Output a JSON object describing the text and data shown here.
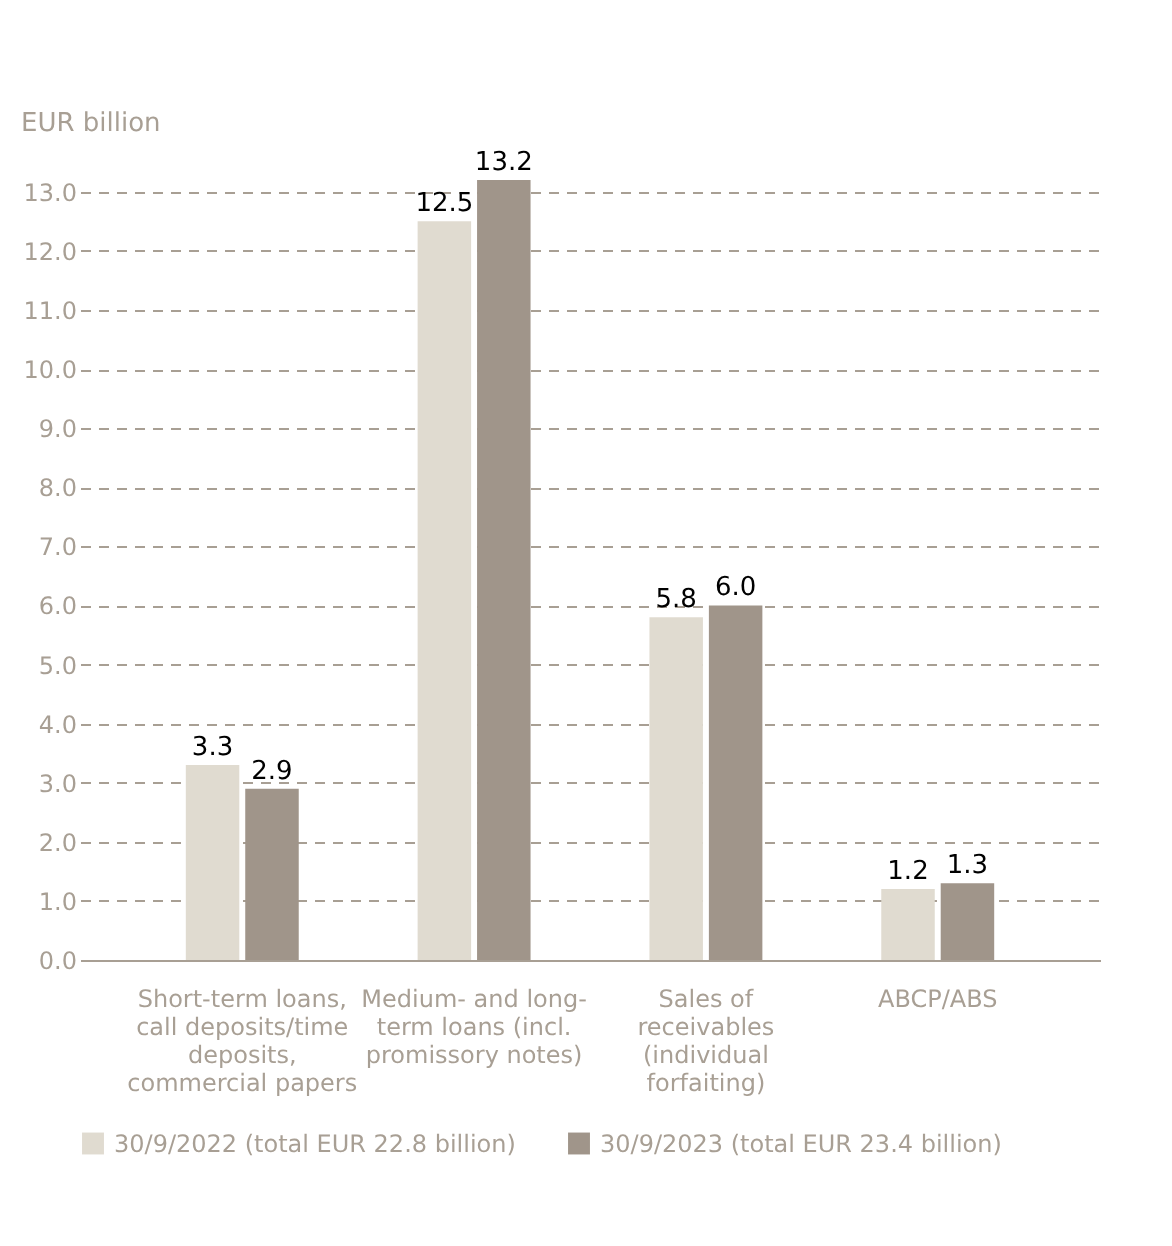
{
  "chart_data": {
    "type": "bar",
    "ylabel": "EUR billion",
    "categories": [
      "Short-term loans, call deposits/time deposits, commercial papers",
      "Medium- and long-term loans (incl. promissory notes)",
      "Sales of receivables (individual forfaiting)",
      "ABCP/ABS"
    ],
    "series": [
      {
        "name": "30/9/2022 (total EUR 22.8 billion)",
        "color": "#e0dbd0",
        "values": [
          3.3,
          12.5,
          5.8,
          1.2
        ],
        "value_labels": [
          "3.3",
          "12.5",
          "5.8",
          "1.2"
        ]
      },
      {
        "name": "30/9/2023 (total EUR 23.4 billion)",
        "color": "#a0958a",
        "values": [
          2.9,
          13.2,
          6.0,
          1.3
        ],
        "value_labels": [
          "2.9",
          "13.2",
          "6.0",
          "1.3"
        ]
      }
    ],
    "ylim": [
      0,
      13.2
    ],
    "yticks": [
      {
        "value": 0,
        "label": "0.0"
      },
      {
        "value": 1,
        "label": "1.0"
      },
      {
        "value": 2,
        "label": "2.0"
      },
      {
        "value": 3,
        "label": "3.0"
      },
      {
        "value": 4,
        "label": "4.0"
      },
      {
        "value": 5,
        "label": "5.0"
      },
      {
        "value": 6,
        "label": "6.0"
      },
      {
        "value": 7,
        "label": "7.0"
      },
      {
        "value": 8,
        "label": "8.0"
      },
      {
        "value": 9,
        "label": "9.0"
      },
      {
        "value": 10,
        "label": "10.0"
      },
      {
        "value": 11,
        "label": "11.0"
      },
      {
        "value": 12,
        "label": "12.0"
      },
      {
        "value": 13,
        "label": "13.0"
      }
    ],
    "grid": "y",
    "legend": "bottom"
  }
}
